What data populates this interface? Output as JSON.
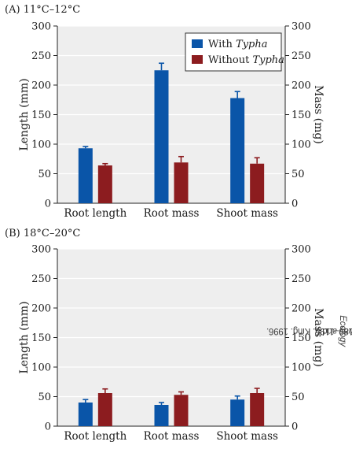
{
  "credit": {
    "prefix": "After R. M. Callaway and L. King. 1996.",
    "journal": "Ecology",
    "suffix": "77: 1189–1195."
  },
  "colors": {
    "with": "#0a55a8",
    "without": "#8c1c1f",
    "plot_bg": "#eeeeee",
    "grid": "#ffffff"
  },
  "chart_data": [
    {
      "type": "bar",
      "label": "(A)  11°C–12°C",
      "categories": [
        "Root length",
        "Root mass",
        "Shoot mass"
      ],
      "ylabel_left": "Length (mm)",
      "ylabel_right": "Mass (mg)",
      "ylim": [
        0,
        300
      ],
      "yticks": [
        0,
        50,
        100,
        150,
        200,
        250,
        300
      ],
      "legend": {
        "placement": "top-right",
        "entries": [
          {
            "prefix": "With ",
            "italic": "Typha"
          },
          {
            "prefix": "Without ",
            "italic": "Typha"
          }
        ]
      },
      "series": [
        {
          "values": [
            93,
            225,
            178
          ],
          "errors": [
            3,
            12,
            11
          ]
        },
        {
          "values": [
            64,
            69,
            67
          ],
          "errors": [
            3,
            10,
            10
          ]
        }
      ]
    },
    {
      "type": "bar",
      "label": "(B)  18°C–20°C",
      "categories": [
        "Root length",
        "Root mass",
        "Shoot mass"
      ],
      "ylabel_left": "Length (mm)",
      "ylabel_right": "Mass (mg)",
      "ylim": [
        0,
        300
      ],
      "yticks": [
        0,
        50,
        100,
        150,
        200,
        250,
        300
      ],
      "series": [
        {
          "values": [
            40,
            36,
            45
          ],
          "errors": [
            5,
            4,
            6
          ]
        },
        {
          "values": [
            56,
            53,
            56
          ],
          "errors": [
            7,
            5,
            8
          ]
        }
      ]
    }
  ]
}
